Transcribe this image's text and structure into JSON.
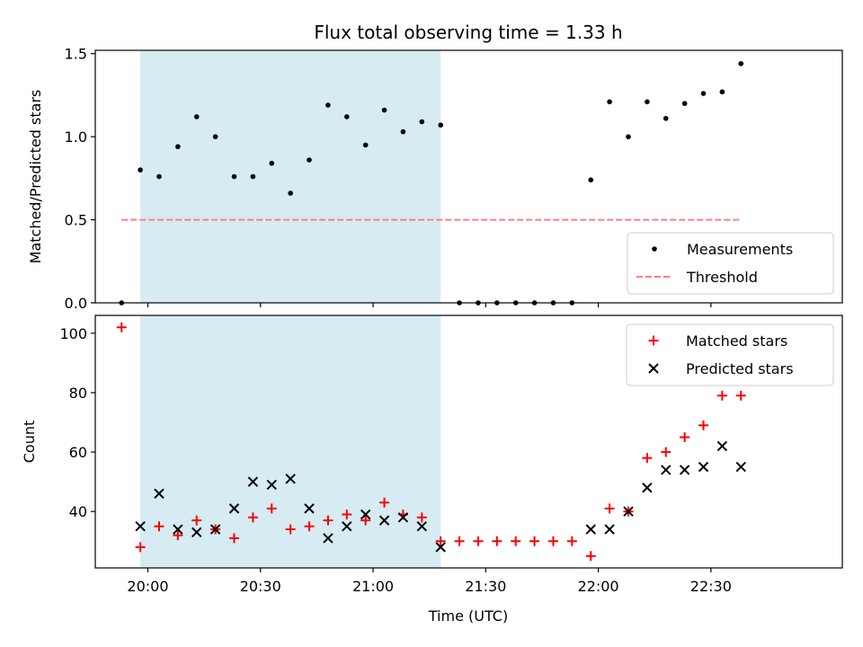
{
  "chart_data": [
    {
      "type": "scatter",
      "title": "Flux total observing time = 1.33 h",
      "ylabel": "Matched/Predicted stars",
      "xlabel": "",
      "xlim": [
        "19:46",
        "23:05"
      ],
      "ylim": [
        0,
        1.52
      ],
      "yticks": [
        0.0,
        0.5,
        1.0,
        1.5
      ],
      "ytick_labels": [
        "0.0",
        "0.5",
        "1.0",
        "1.5"
      ],
      "shaded_span": {
        "start": "19:58",
        "end": "21:18",
        "color": "#add8e6"
      },
      "legend": {
        "position": "bottom-right",
        "entries": [
          "Measurements",
          "Threshold"
        ]
      },
      "series": [
        {
          "name": "Measurements",
          "marker": "dot",
          "color": "#000000",
          "points": [
            [
              "19:53",
              0.0
            ],
            [
              "19:58",
              0.8
            ],
            [
              "20:03",
              0.76
            ],
            [
              "20:08",
              0.94
            ],
            [
              "20:13",
              1.12
            ],
            [
              "20:18",
              1.0
            ],
            [
              "20:23",
              0.76
            ],
            [
              "20:28",
              0.76
            ],
            [
              "20:33",
              0.84
            ],
            [
              "20:38",
              0.66
            ],
            [
              "20:43",
              0.86
            ],
            [
              "20:48",
              1.19
            ],
            [
              "20:53",
              1.12
            ],
            [
              "20:58",
              0.95
            ],
            [
              "21:03",
              1.16
            ],
            [
              "21:08",
              1.03
            ],
            [
              "21:13",
              1.09
            ],
            [
              "21:18",
              1.07
            ],
            [
              "21:23",
              0.0
            ],
            [
              "21:28",
              0.0
            ],
            [
              "21:33",
              0.0
            ],
            [
              "21:38",
              0.0
            ],
            [
              "21:43",
              0.0
            ],
            [
              "21:48",
              0.0
            ],
            [
              "21:53",
              0.0
            ],
            [
              "21:58",
              0.74
            ],
            [
              "22:03",
              1.21
            ],
            [
              "22:08",
              1.0
            ],
            [
              "22:13",
              1.21
            ],
            [
              "22:18",
              1.11
            ],
            [
              "22:23",
              1.2
            ],
            [
              "22:28",
              1.26
            ],
            [
              "22:33",
              1.27
            ],
            [
              "22:38",
              1.44
            ]
          ]
        },
        {
          "name": "Threshold",
          "line": "dashed",
          "color": "#ff7f7f",
          "x": [
            "19:53",
            "22:38"
          ],
          "value": 0.5
        }
      ]
    },
    {
      "type": "scatter",
      "title": "",
      "ylabel": "Count",
      "xlabel": "Time (UTC)",
      "xlim": [
        "19:46",
        "23:05"
      ],
      "ylim": [
        21,
        106
      ],
      "yticks": [
        40,
        60,
        80,
        100
      ],
      "ytick_labels": [
        "40",
        "60",
        "80",
        "100"
      ],
      "xticks": [
        "20:00",
        "20:30",
        "21:00",
        "21:30",
        "22:00",
        "22:30"
      ],
      "xtick_labels": [
        "20:00",
        "20:30",
        "21:00",
        "21:30",
        "22:00",
        "22:30"
      ],
      "shaded_span": {
        "start": "19:58",
        "end": "21:18",
        "color": "#add8e6"
      },
      "legend": {
        "position": "top-right",
        "entries": [
          "Matched stars",
          "Predicted stars"
        ]
      },
      "series": [
        {
          "name": "Matched stars",
          "marker": "plus",
          "color": "#ff0000",
          "points": [
            [
              "19:53",
              102
            ],
            [
              "19:58",
              28
            ],
            [
              "20:03",
              35
            ],
            [
              "20:08",
              32
            ],
            [
              "20:13",
              37
            ],
            [
              "20:18",
              34
            ],
            [
              "20:23",
              31
            ],
            [
              "20:28",
              38
            ],
            [
              "20:33",
              41
            ],
            [
              "20:38",
              34
            ],
            [
              "20:43",
              35
            ],
            [
              "20:48",
              37
            ],
            [
              "20:53",
              39
            ],
            [
              "20:58",
              37
            ],
            [
              "21:03",
              43
            ],
            [
              "21:08",
              39
            ],
            [
              "21:13",
              38
            ],
            [
              "21:18",
              30
            ],
            [
              "21:23",
              30
            ],
            [
              "21:28",
              30
            ],
            [
              "21:33",
              30
            ],
            [
              "21:38",
              30
            ],
            [
              "21:43",
              30
            ],
            [
              "21:48",
              30
            ],
            [
              "21:53",
              30
            ],
            [
              "21:58",
              25
            ],
            [
              "22:03",
              41
            ],
            [
              "22:08",
              40
            ],
            [
              "22:13",
              58
            ],
            [
              "22:18",
              60
            ],
            [
              "22:23",
              65
            ],
            [
              "22:28",
              69
            ],
            [
              "22:33",
              79
            ],
            [
              "22:38",
              79
            ]
          ]
        },
        {
          "name": "Predicted stars",
          "marker": "x",
          "color": "#000000",
          "points": [
            [
              "19:58",
              35
            ],
            [
              "20:03",
              46
            ],
            [
              "20:08",
              34
            ],
            [
              "20:13",
              33
            ],
            [
              "20:18",
              34
            ],
            [
              "20:23",
              41
            ],
            [
              "20:28",
              50
            ],
            [
              "20:33",
              49
            ],
            [
              "20:38",
              51
            ],
            [
              "20:43",
              41
            ],
            [
              "20:48",
              31
            ],
            [
              "20:53",
              35
            ],
            [
              "20:58",
              39
            ],
            [
              "21:03",
              37
            ],
            [
              "21:08",
              38
            ],
            [
              "21:13",
              35
            ],
            [
              "21:18",
              28
            ],
            [
              "21:58",
              34
            ],
            [
              "22:03",
              34
            ],
            [
              "22:08",
              40
            ],
            [
              "22:13",
              48
            ],
            [
              "22:18",
              54
            ],
            [
              "22:23",
              54
            ],
            [
              "22:28",
              55
            ],
            [
              "22:33",
              62
            ],
            [
              "22:38",
              55
            ]
          ]
        }
      ]
    }
  ]
}
